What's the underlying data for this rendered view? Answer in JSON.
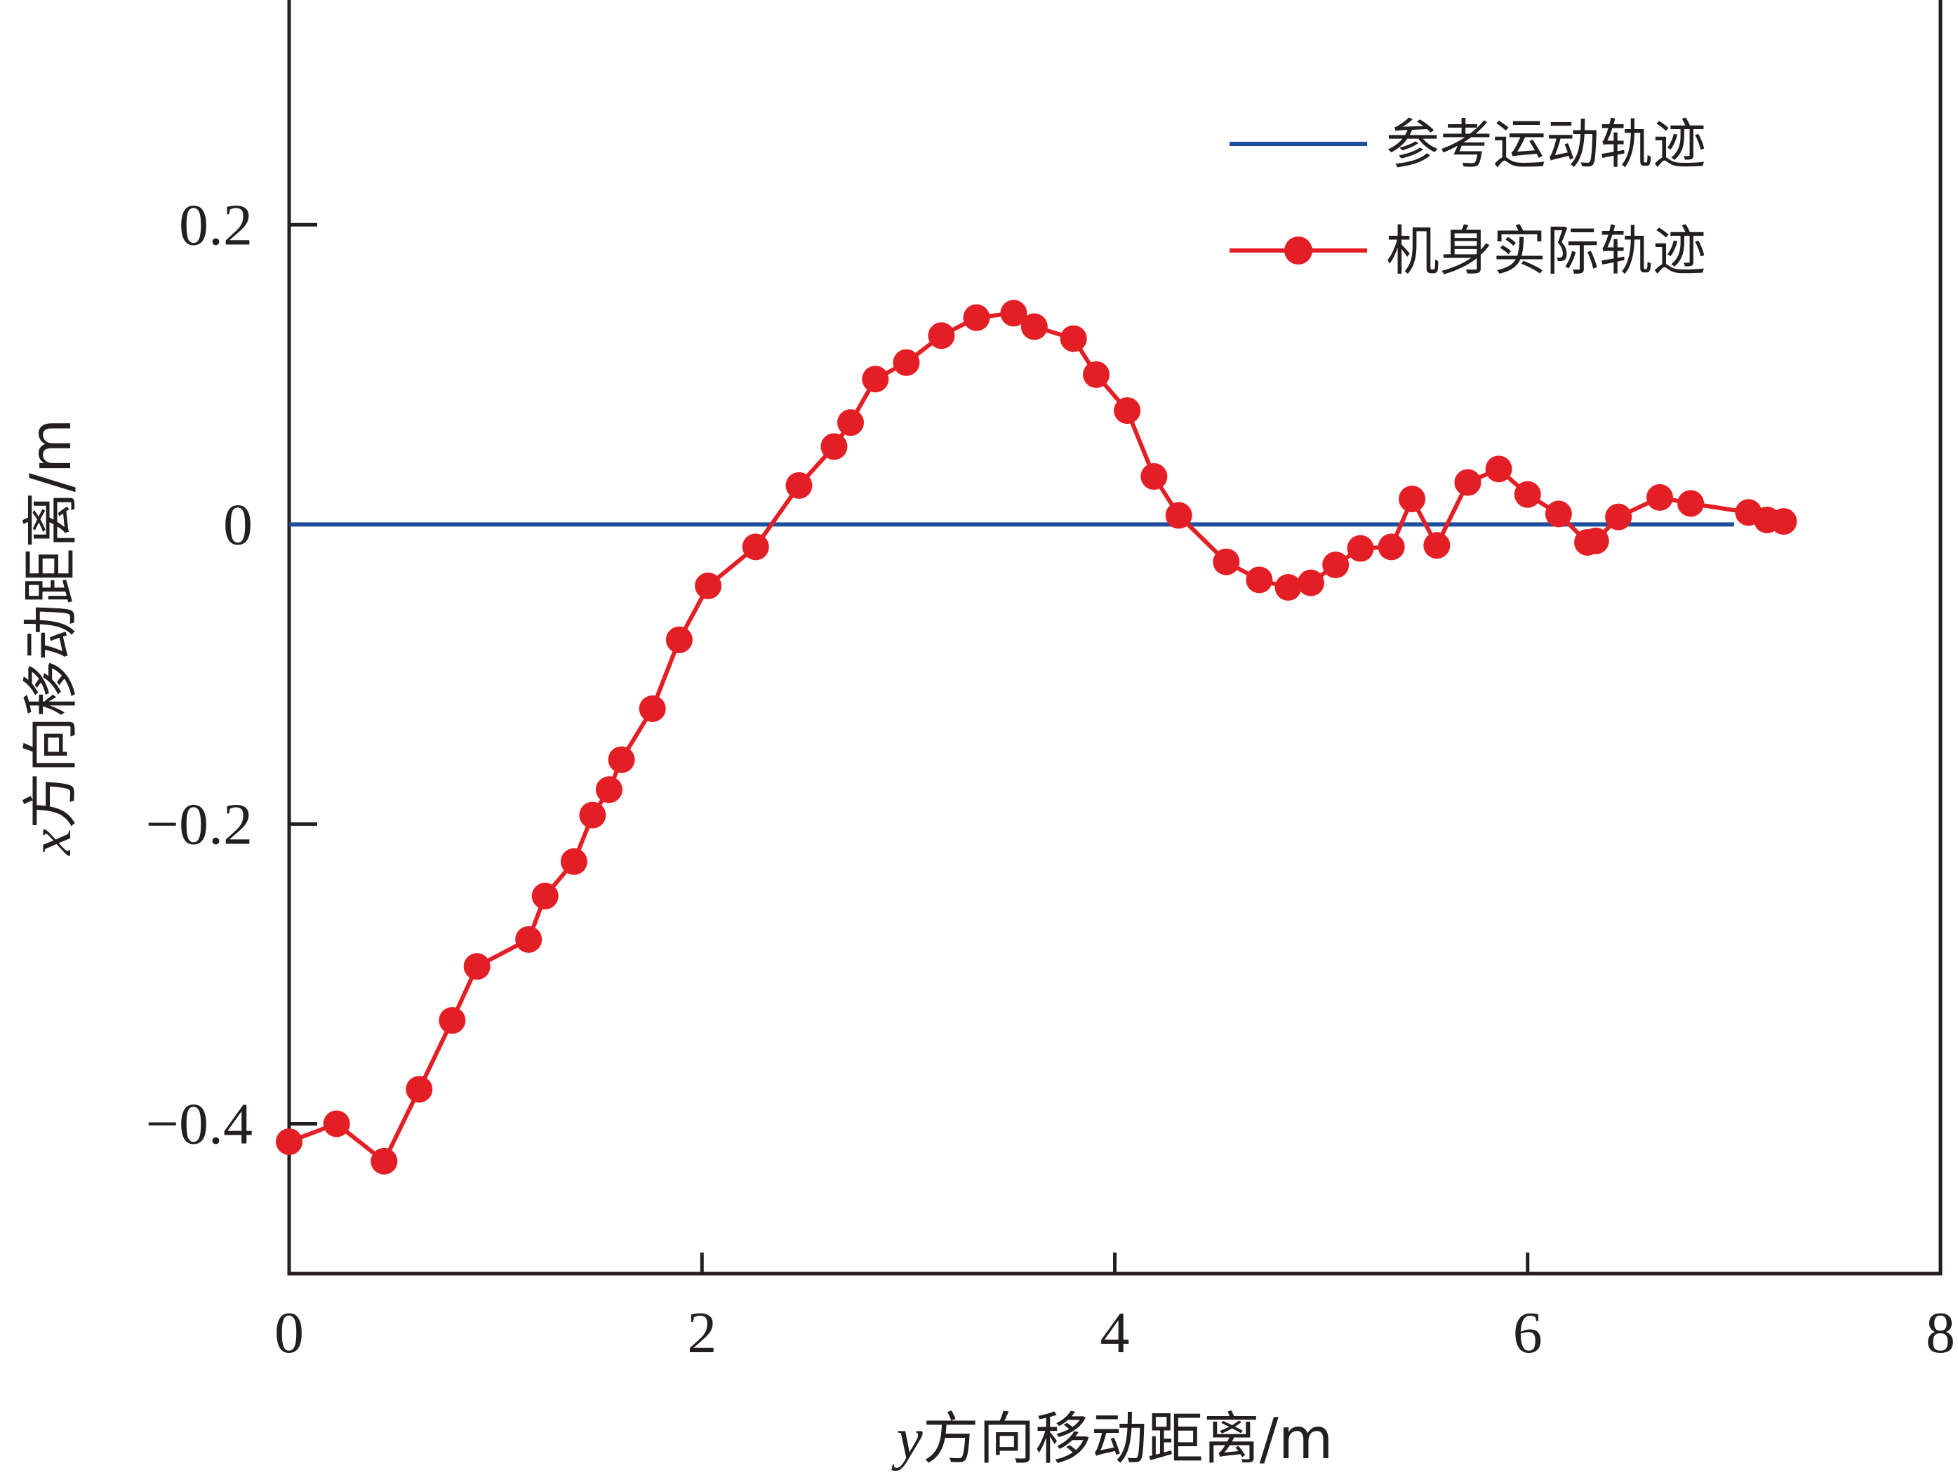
{
  "chart_data": {
    "type": "line",
    "xlabel_var": "y",
    "xlabel_rest": "方向移动距离/m",
    "ylabel_var": "x",
    "ylabel_rest": "方向移动距离/m",
    "xlim": [
      0,
      8
    ],
    "ylim": [
      -0.5,
      0.35
    ],
    "xticks": [
      0,
      2,
      4,
      6,
      8
    ],
    "xtick_labels": [
      "0",
      "2",
      "4",
      "6",
      "8"
    ],
    "yticks": [
      -0.4,
      -0.2,
      0,
      0.2
    ],
    "ytick_labels": [
      "−0.4",
      "−0.2",
      "0",
      "0.2"
    ],
    "grid": false,
    "legend_position": "top-right",
    "colors": {
      "reference": "#1f4e9e",
      "actual": "#e31e24",
      "axis": "#231f20"
    },
    "series": [
      {
        "name": "参考运动轨迹",
        "style": "line",
        "x": [
          0,
          7.0
        ],
        "y": [
          0,
          0
        ]
      },
      {
        "name": "机身实际轨迹",
        "style": "line-marker",
        "x": [
          0.0,
          0.23,
          0.46,
          0.63,
          0.79,
          0.91,
          1.16,
          1.24,
          1.38,
          1.47,
          1.55,
          1.61,
          1.76,
          1.89,
          2.03,
          2.26,
          2.47,
          2.64,
          2.72,
          2.84,
          2.99,
          3.16,
          3.33,
          3.51,
          3.61,
          3.8,
          3.91,
          4.06,
          4.19,
          4.31,
          4.54,
          4.7,
          4.84,
          4.95,
          5.07,
          5.19,
          5.34,
          5.44,
          5.56,
          5.71,
          5.86,
          6.0,
          6.15,
          6.29,
          6.33,
          6.44,
          6.64,
          6.79,
          7.07,
          7.16,
          7.24
        ],
        "y": [
          -0.412,
          -0.4,
          -0.425,
          -0.377,
          -0.331,
          -0.295,
          -0.277,
          -0.248,
          -0.225,
          -0.194,
          -0.177,
          -0.157,
          -0.123,
          -0.077,
          -0.041,
          -0.015,
          0.026,
          0.052,
          0.068,
          0.097,
          0.108,
          0.126,
          0.138,
          0.141,
          0.132,
          0.124,
          0.1,
          0.076,
          0.032,
          0.006,
          -0.025,
          -0.037,
          -0.042,
          -0.039,
          -0.027,
          -0.016,
          -0.015,
          0.017,
          -0.014,
          0.028,
          0.037,
          0.02,
          0.007,
          -0.012,
          -0.011,
          0.005,
          0.018,
          0.014,
          0.008,
          0.003,
          0.002
        ]
      }
    ]
  }
}
